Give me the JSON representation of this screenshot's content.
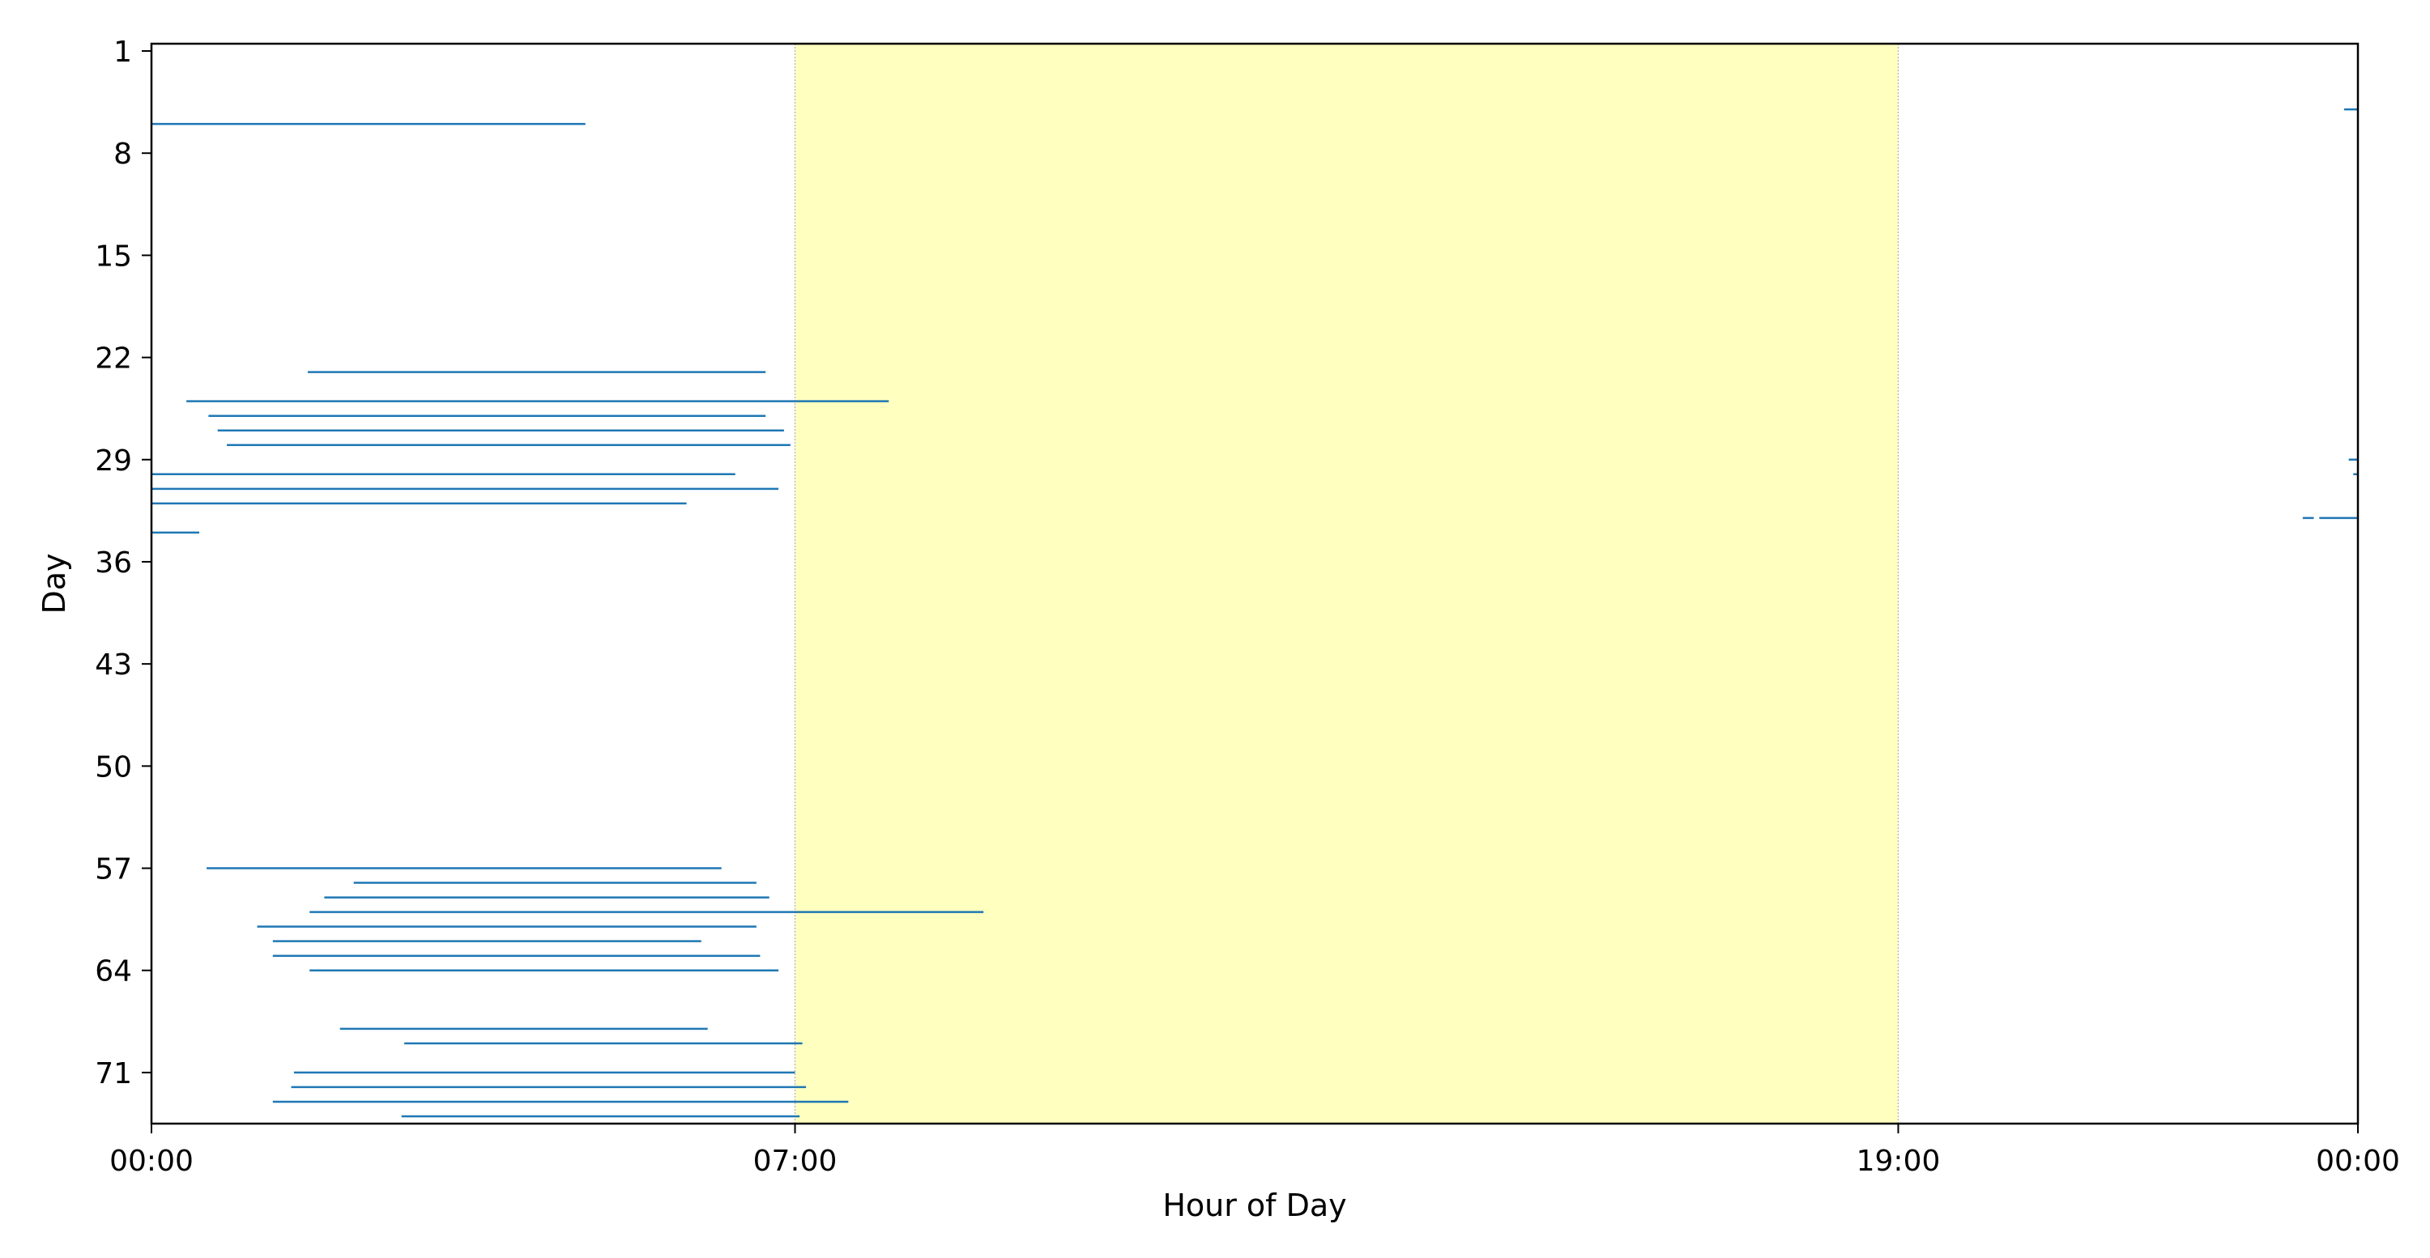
{
  "chart_data": {
    "type": "timeline",
    "xlabel": "Hour of Day",
    "ylabel": "Day",
    "x_tick_labels": [
      "00:00",
      "07:00",
      "19:00",
      "00:00"
    ],
    "x_tick_values": [
      0,
      7,
      19,
      24
    ],
    "y_tick_labels": [
      "1",
      "8",
      "15",
      "22",
      "29",
      "36",
      "43",
      "50",
      "57",
      "64",
      "71"
    ],
    "y_tick_values": [
      1,
      8,
      15,
      22,
      29,
      36,
      43,
      50,
      57,
      64,
      71
    ],
    "xlim": [
      0,
      24
    ],
    "ylim_top_to_bottom": [
      0.5,
      74.5
    ],
    "y_inverted": true,
    "grid": false,
    "daytime_band": {
      "start_hour": 7,
      "end_hour": 19,
      "color": "#ffffc0"
    },
    "segment_color": "#1f77b4",
    "series": [
      {
        "segments": [
          {
            "day": 5,
            "start_hour": 23.85,
            "end_hour": 24.0
          },
          {
            "day": 6,
            "start_hour": 0.0,
            "end_hour": 4.72
          },
          {
            "day": 23,
            "start_hour": 1.7,
            "end_hour": 6.68
          },
          {
            "day": 25,
            "start_hour": 0.38,
            "end_hour": 8.02
          },
          {
            "day": 26,
            "start_hour": 0.62,
            "end_hour": 6.68
          },
          {
            "day": 27,
            "start_hour": 0.72,
            "end_hour": 6.88
          },
          {
            "day": 28,
            "start_hour": 0.82,
            "end_hour": 6.95
          },
          {
            "day": 29,
            "start_hour": 23.9,
            "end_hour": 24.0
          },
          {
            "day": 30,
            "start_hour": 0.0,
            "end_hour": 6.35
          },
          {
            "day": 30,
            "start_hour": 23.95,
            "end_hour": 24.0
          },
          {
            "day": 31,
            "start_hour": 0.0,
            "end_hour": 6.82
          },
          {
            "day": 32,
            "start_hour": 0.0,
            "end_hour": 5.82
          },
          {
            "day": 33,
            "start_hour": 23.4,
            "end_hour": 23.52
          },
          {
            "day": 33,
            "start_hour": 23.58,
            "end_hour": 24.0
          },
          {
            "day": 34,
            "start_hour": 0.0,
            "end_hour": 0.52
          },
          {
            "day": 57,
            "start_hour": 0.6,
            "end_hour": 6.2
          },
          {
            "day": 58,
            "start_hour": 2.2,
            "end_hour": 6.58
          },
          {
            "day": 59,
            "start_hour": 1.88,
            "end_hour": 6.72
          },
          {
            "day": 60,
            "start_hour": 1.72,
            "end_hour": 9.05
          },
          {
            "day": 61,
            "start_hour": 1.15,
            "end_hour": 6.58
          },
          {
            "day": 62,
            "start_hour": 1.32,
            "end_hour": 5.98
          },
          {
            "day": 63,
            "start_hour": 1.32,
            "end_hour": 6.62
          },
          {
            "day": 64,
            "start_hour": 1.72,
            "end_hour": 6.82
          },
          {
            "day": 68,
            "start_hour": 2.05,
            "end_hour": 6.05
          },
          {
            "day": 69,
            "start_hour": 2.75,
            "end_hour": 7.08
          },
          {
            "day": 71,
            "start_hour": 1.55,
            "end_hour": 7.0
          },
          {
            "day": 72,
            "start_hour": 1.52,
            "end_hour": 7.12
          },
          {
            "day": 73,
            "start_hour": 1.32,
            "end_hour": 7.58
          },
          {
            "day": 74,
            "start_hour": 2.72,
            "end_hour": 7.05
          }
        ]
      }
    ]
  }
}
